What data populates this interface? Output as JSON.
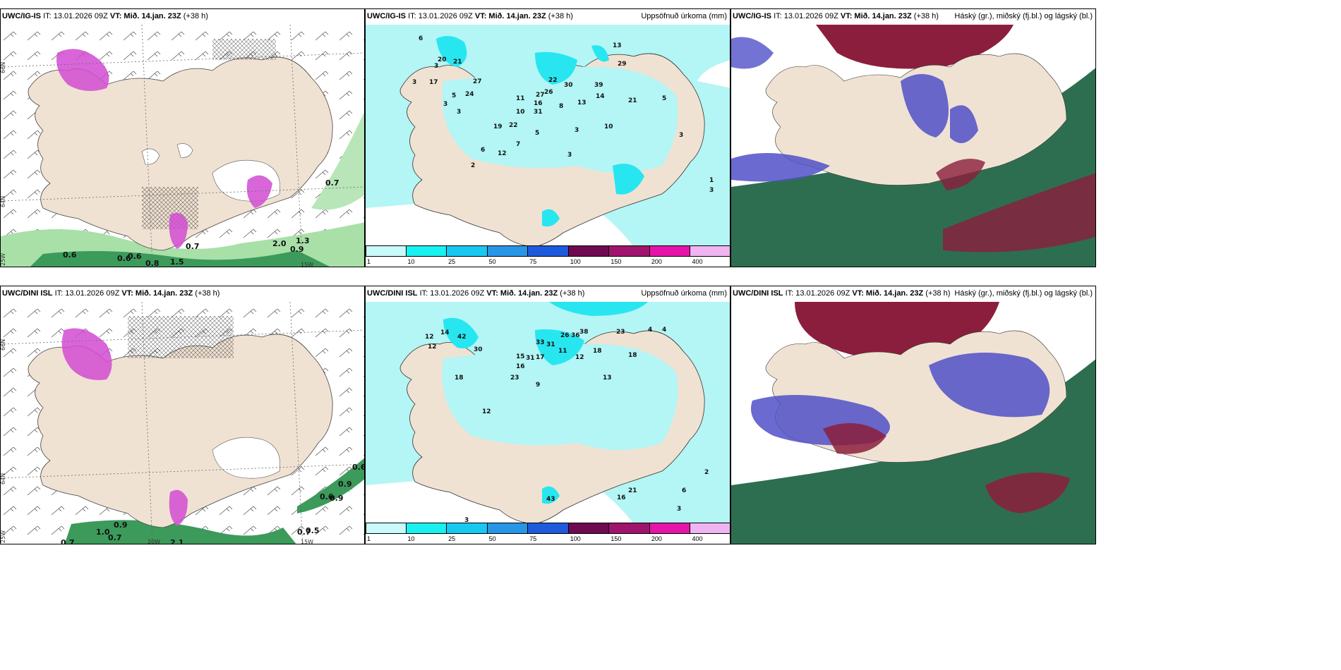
{
  "panels": [
    {
      "model": "UWC/IG-IS",
      "it": "IT: 13.01.2026 09Z",
      "vt": "VT: Mið. 14.jan. 23Z",
      "lead": "(+38 h)",
      "title_right": ""
    },
    {
      "model": "UWC/IG-IS",
      "it": "IT: 13.01.2026 09Z",
      "vt": "VT: Mið. 14.jan. 23Z",
      "lead": "(+38 h)",
      "title_right": "Uppsöfnuð úrkoma (mm)"
    },
    {
      "model": "UWC/IG-IS",
      "it": "IT: 13.01.2026 09Z",
      "vt": "VT: Mið. 14.jan. 23Z",
      "lead": "(+38 h)",
      "title_right": "Háský (gr.), miðský (fj.bl.) og lágský (bl.)"
    },
    {
      "model": "UWC/DINI ISL",
      "it": "IT: 13.01.2026 09Z",
      "vt": "VT: Mið. 14.jan. 23Z",
      "lead": "(+38 h)",
      "title_right": ""
    },
    {
      "model": "UWC/DINI ISL",
      "it": "IT: 13.01.2026 09Z",
      "vt": "VT: Mið. 14.jan. 23Z",
      "lead": "(+38 h)",
      "title_right": "Uppsöfnuð úrkoma (mm)"
    },
    {
      "model": "UWC/DINI ISL",
      "it": "IT: 13.01.2026 09Z",
      "vt": "VT: Mið. 14.jan. 23Z",
      "lead": "(+38 h)",
      "title_right": "Háský (gr.), miðský (fj.bl.) og lágský (bl.)"
    }
  ],
  "axis_labels": {
    "lat66": "66N",
    "lat64": "64N",
    "lon25": "25W",
    "lon20": "20W",
    "lon15": "15W"
  },
  "colorbar": {
    "labels": [
      "1",
      "10",
      "25",
      "50",
      "75",
      "100",
      "150",
      "200",
      "400"
    ],
    "colors": [
      "#c8fafa",
      "#19f0f0",
      "#19c8f0",
      "#2896e6",
      "#1e5adc",
      "#6e0a50",
      "#a0146e",
      "#e614aa",
      "#f0b4f0"
    ]
  },
  "colors": {
    "land": "#f0e2d2",
    "precip_light": "#b4f5f5",
    "precip_mid": "#28e6f0",
    "snow": "#d24bd2",
    "rain_green": "#2e8b57",
    "hi_cloud": "#8b1e3c",
    "mid_cloud": "#5050c8",
    "low_cloud": "#2e6e50"
  },
  "precip_top": [
    "6",
    "20",
    "21",
    "24",
    "27",
    "3",
    "17",
    "3",
    "5",
    "3",
    "13",
    "29",
    "22",
    "26",
    "30",
    "39",
    "14",
    "21",
    "11",
    "27",
    "16",
    "31",
    "8",
    "13",
    "10",
    "10",
    "5",
    "3",
    "19",
    "22",
    "12",
    "7",
    "6",
    "5",
    "3",
    "3",
    "3",
    "2",
    "3",
    "1"
  ],
  "precip_bottom": [
    "12",
    "14",
    "42",
    "30",
    "12",
    "15",
    "31",
    "17",
    "33",
    "31",
    "11",
    "26",
    "36",
    "38",
    "18",
    "23",
    "18",
    "13",
    "12",
    "16",
    "23",
    "9",
    "4",
    "4",
    "18",
    "12",
    "2",
    "3",
    "43",
    "16",
    "21",
    "6",
    "3"
  ],
  "snow_top": [
    "0.7",
    "0.6",
    "0.6",
    "0.6",
    "0.8",
    "1.5",
    "0.7",
    "2.0",
    "0.9",
    "1.3"
  ],
  "snow_bottom": [
    "0.6",
    "0.9",
    "0.6",
    "0.9",
    "0.7",
    "0.5",
    "0.7",
    "1.0",
    "0.7",
    "2.1",
    "0.9"
  ]
}
